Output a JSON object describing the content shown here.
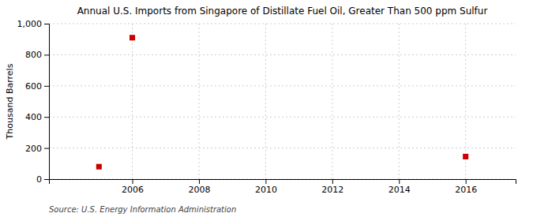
{
  "chart_data": {
    "type": "scatter",
    "title": "Annual U.S. Imports from Singapore of Distillate Fuel Oil, Greater Than 500 ppm Sulfur",
    "y_label": "Thousand Barrels",
    "source": "Source: U.S. Energy Information Administration",
    "x": [
      2005,
      2006,
      2016
    ],
    "values": [
      80,
      910,
      145
    ],
    "color": "#cc0000",
    "marker": "square",
    "xlim": [
      2003.5,
      2017.5
    ],
    "xticks": [
      2006,
      2008,
      2010,
      2012,
      2014,
      2016
    ],
    "ylim": [
      0,
      1000
    ],
    "yticks": [
      0,
      200,
      400,
      600,
      800,
      {
        "value": 1000,
        "label": "1,000"
      }
    ],
    "grid": true
  }
}
